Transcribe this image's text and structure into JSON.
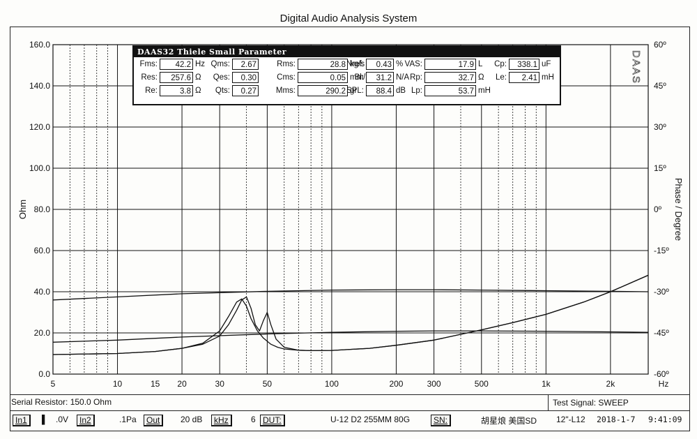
{
  "title": "Digital Audio Analysis System",
  "side_text": "DAAS",
  "chart_data": {
    "type": "line",
    "xscale": "log",
    "xlim": [
      5,
      3000
    ],
    "ylim": [
      0,
      160
    ],
    "y2lim": [
      -60,
      60
    ],
    "grid": true,
    "ylabel": "Ohm",
    "y2label": "Phase / Degree",
    "x_ticks": [
      "5",
      "10",
      "15",
      "20",
      "30",
      "50",
      "100",
      "200",
      "300",
      "500",
      "1k",
      "2k"
    ],
    "x_unit": "Hz",
    "y_ticks": [
      "0.0",
      "20.0",
      "40.0",
      "60.0",
      "80.0",
      "100.0",
      "120.0",
      "140.0",
      "160.0"
    ],
    "y2_ticks": [
      "-60º",
      "-45º",
      "-30º",
      "-15º",
      "0º",
      "15º",
      "30º",
      "45º",
      "60º"
    ],
    "series": [
      {
        "x": [
          5,
          10,
          15,
          20,
          25,
          30,
          33,
          36,
          38,
          40,
          42,
          45,
          48,
          52,
          56,
          60,
          70,
          80,
          100,
          150,
          200,
          300,
          500,
          700,
          1000,
          1500,
          2000,
          3000
        ],
        "y": [
          9.5,
          10,
          11,
          12.5,
          15,
          21,
          28,
          35,
          36.5,
          33,
          27,
          21,
          17.5,
          14.5,
          13,
          12.2,
          11.6,
          11.4,
          11.5,
          12.5,
          14,
          16.5,
          21.5,
          25,
          29,
          35,
          40,
          48
        ]
      },
      {
        "x": [
          5,
          10,
          15,
          20,
          25,
          30,
          33,
          36,
          38,
          40,
          42,
          44,
          46,
          48,
          50,
          52,
          55,
          60,
          70,
          80,
          100,
          150,
          200,
          300,
          500,
          700,
          1000,
          1500,
          2000,
          3000
        ],
        "y": [
          9.5,
          10,
          11,
          12.5,
          14.5,
          18.5,
          24,
          31,
          36,
          37.5,
          32,
          24,
          21,
          26,
          30,
          24,
          17,
          13,
          11.6,
          11.4,
          11.5,
          12.5,
          14,
          16.5,
          21.5,
          25,
          29,
          35,
          40,
          48
        ]
      },
      {
        "x": [
          5,
          10,
          20,
          50,
          100,
          200,
          300,
          500,
          1000,
          2000,
          3000
        ],
        "y": [
          15.5,
          16.5,
          18,
          19.5,
          20.3,
          20.8,
          21,
          21,
          20.8,
          20.5,
          20.3
        ]
      },
      {
        "x": [
          5,
          10,
          20,
          50,
          100,
          200,
          300,
          500,
          1000,
          2000,
          3000
        ],
        "y": [
          36,
          37.5,
          39,
          40.2,
          40.8,
          41,
          41,
          40.8,
          40.5,
          40.2,
          40
        ]
      }
    ]
  },
  "tsp": {
    "title": "DAAS32 Thiele Small Parameter",
    "params": [
      {
        "label": "Fms:",
        "value": "42.2",
        "unit": "Hz"
      },
      {
        "label": "Qms:",
        "value": "2.67",
        "unit": ""
      },
      {
        "label": "Rms:",
        "value": "28.8",
        "unit": "kg/s"
      },
      {
        "label": "Nref:",
        "value": "0.43",
        "unit": "%"
      },
      {
        "label": "VAS:",
        "value": "17.9",
        "unit": "L"
      },
      {
        "label": "Cp:",
        "value": "338.1",
        "unit": "uF"
      },
      {
        "label": "Res:",
        "value": "257.6",
        "unit": "Ω"
      },
      {
        "label": "Qes:",
        "value": "0.30",
        "unit": ""
      },
      {
        "label": "Cms:",
        "value": "0.05",
        "unit": "mm/N"
      },
      {
        "label": "Bl:",
        "value": "31.2",
        "unit": "N/A"
      },
      {
        "label": "Rp:",
        "value": "32.7",
        "unit": "Ω"
      },
      {
        "label": "Le:",
        "value": "2.41",
        "unit": "mH"
      },
      {
        "label": "Re:",
        "value": "3.8",
        "unit": "Ω"
      },
      {
        "label": "Qts:",
        "value": "0.27",
        "unit": ""
      },
      {
        "label": "Mms:",
        "value": "290.2",
        "unit": "gr"
      },
      {
        "label": "SPL:",
        "value": "88.4",
        "unit": "dB"
      },
      {
        "label": "Lp:",
        "value": "53.7",
        "unit": "mH"
      }
    ]
  },
  "status": {
    "serial": "Serial Resistor: 150.0 Ohm",
    "test_signal": "Test Signal: SWEEP",
    "in1": "In1",
    "v0": ".0V",
    "in2": "In2",
    "pa": ".1Pa",
    "out": "Out",
    "db": "20 dB",
    "khz": "kHz",
    "six": "6",
    "dut": "DUT:",
    "model": "U-12  D2   255MM  80G",
    "sn": "SN:",
    "vendor": "胡星烺   美国SD",
    "size": "12\"-L12",
    "date": "2018-1-7",
    "time": "9:41:09"
  }
}
